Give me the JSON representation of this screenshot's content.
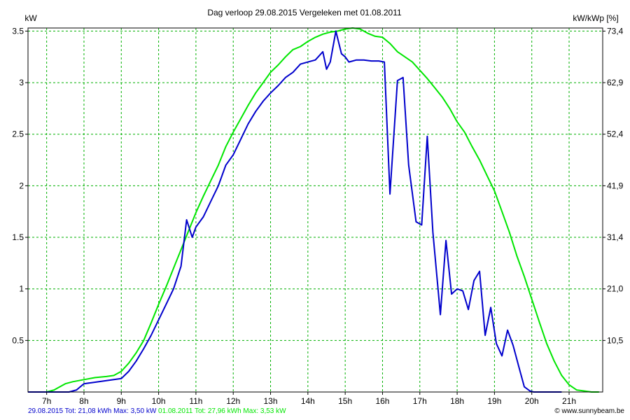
{
  "header": {
    "title": "Dag  verloop 29.08.2015   Vergeleken met 01.08.2011",
    "left_unit": "kW",
    "right_unit": "kW/kWp [%]"
  },
  "footer": {
    "series1_summary": "29.08.2015 Tot: 21,08 kWh Max: 3,50 kW",
    "series2_summary": "01.08.2011 Tot: 27,96 kWh Max: 3,53 kW",
    "credit": "© www.sunnybeam.be"
  },
  "colors": {
    "series1": "#0000cc",
    "series2": "#00e600",
    "grid": "#00b000",
    "axis": "#000000"
  },
  "chart_data": {
    "type": "line",
    "title": "Dag  verloop 29.08.2015   Vergeleken met 01.08.2011",
    "ylabel": "kW",
    "y2label": "kW/kWp [%]",
    "xlim": [
      6.5,
      21.9
    ],
    "ylim": [
      0,
      3.53
    ],
    "x_ticks": [
      7,
      8,
      9,
      10,
      11,
      12,
      13,
      14,
      15,
      16,
      17,
      18,
      19,
      20,
      21
    ],
    "x_tick_labels": [
      "7h",
      "8h",
      "9h",
      "10h",
      "11h",
      "12h",
      "13h",
      "14h",
      "15h",
      "16h",
      "17h",
      "18h",
      "19h",
      "20h",
      "21h"
    ],
    "y_ticks": [
      0.5,
      1,
      1.5,
      2,
      2.5,
      3,
      3.5
    ],
    "y_tick_labels": [
      "0.5",
      "1",
      "1.5",
      "2",
      "2.5",
      "3",
      "3.5"
    ],
    "y2_tick_labels": [
      "10,5",
      "21,0",
      "31,4",
      "41,9",
      "52,4",
      "62,9",
      "73,4"
    ],
    "grid": true,
    "legend": "none",
    "series": [
      {
        "name": "29.08.2015",
        "x": [
          6.5,
          7.4,
          7.6,
          7.8,
          7.9,
          8.0,
          8.2,
          8.4,
          8.6,
          8.8,
          9.0,
          9.2,
          9.4,
          9.6,
          9.8,
          10.0,
          10.2,
          10.4,
          10.6,
          10.75,
          10.9,
          11.0,
          11.2,
          11.4,
          11.6,
          11.8,
          12.0,
          12.2,
          12.4,
          12.6,
          12.8,
          13.0,
          13.2,
          13.4,
          13.6,
          13.8,
          14.0,
          14.2,
          14.4,
          14.5,
          14.6,
          14.75,
          14.9,
          15.0,
          15.1,
          15.3,
          15.5,
          15.7,
          15.9,
          16.05,
          16.2,
          16.4,
          16.55,
          16.7,
          16.9,
          17.05,
          17.2,
          17.35,
          17.55,
          17.7,
          17.85,
          18.0,
          18.15,
          18.3,
          18.45,
          18.6,
          18.75,
          18.9,
          19.05,
          19.2,
          19.35,
          19.5,
          19.65,
          19.8,
          19.95,
          20.05,
          20.2,
          20.5,
          20.8
        ],
        "y": [
          0.0,
          0.0,
          0.0,
          0.02,
          0.05,
          0.08,
          0.09,
          0.1,
          0.11,
          0.12,
          0.13,
          0.2,
          0.3,
          0.42,
          0.55,
          0.7,
          0.85,
          1.0,
          1.22,
          1.67,
          1.5,
          1.6,
          1.7,
          1.85,
          2.0,
          2.2,
          2.3,
          2.45,
          2.6,
          2.72,
          2.82,
          2.9,
          2.97,
          3.05,
          3.1,
          3.18,
          3.2,
          3.22,
          3.3,
          3.13,
          3.2,
          3.5,
          3.28,
          3.25,
          3.2,
          3.22,
          3.22,
          3.21,
          3.21,
          3.2,
          1.92,
          3.02,
          3.05,
          2.2,
          1.65,
          1.62,
          2.48,
          1.55,
          0.75,
          1.47,
          0.95,
          1.0,
          0.98,
          0.8,
          1.08,
          1.17,
          0.55,
          0.82,
          0.47,
          0.35,
          0.6,
          0.45,
          0.25,
          0.05,
          0.01,
          0.0,
          0.0,
          0.0,
          0.0
        ]
      },
      {
        "name": "01.08.2011",
        "x": [
          6.5,
          7.0,
          7.2,
          7.3,
          7.5,
          7.7,
          8.0,
          8.3,
          8.6,
          8.8,
          9.0,
          9.2,
          9.4,
          9.6,
          9.8,
          10.0,
          10.2,
          10.4,
          10.6,
          10.8,
          11.0,
          11.2,
          11.4,
          11.6,
          11.8,
          12.0,
          12.2,
          12.4,
          12.6,
          12.8,
          13.0,
          13.2,
          13.4,
          13.6,
          13.8,
          14.0,
          14.2,
          14.4,
          14.6,
          14.8,
          15.0,
          15.2,
          15.4,
          15.6,
          15.8,
          16.0,
          16.2,
          16.4,
          16.6,
          16.8,
          17.0,
          17.2,
          17.4,
          17.6,
          17.8,
          18.0,
          18.2,
          18.4,
          18.6,
          18.8,
          19.0,
          19.2,
          19.4,
          19.6,
          19.8,
          20.0,
          20.2,
          20.4,
          20.6,
          20.8,
          21.0,
          21.2,
          21.4,
          21.6,
          21.8
        ],
        "y": [
          0.0,
          0.0,
          0.02,
          0.04,
          0.08,
          0.1,
          0.12,
          0.14,
          0.15,
          0.16,
          0.2,
          0.28,
          0.38,
          0.5,
          0.67,
          0.85,
          1.02,
          1.2,
          1.38,
          1.56,
          1.74,
          1.9,
          2.05,
          2.2,
          2.38,
          2.52,
          2.65,
          2.78,
          2.9,
          3.0,
          3.1,
          3.17,
          3.25,
          3.32,
          3.35,
          3.4,
          3.44,
          3.47,
          3.49,
          3.5,
          3.52,
          3.53,
          3.52,
          3.48,
          3.45,
          3.44,
          3.38,
          3.3,
          3.25,
          3.2,
          3.12,
          3.04,
          2.95,
          2.86,
          2.75,
          2.62,
          2.52,
          2.38,
          2.25,
          2.1,
          1.95,
          1.75,
          1.55,
          1.32,
          1.12,
          0.9,
          0.68,
          0.47,
          0.3,
          0.16,
          0.07,
          0.02,
          0.01,
          0.0,
          0.0
        ]
      }
    ]
  }
}
